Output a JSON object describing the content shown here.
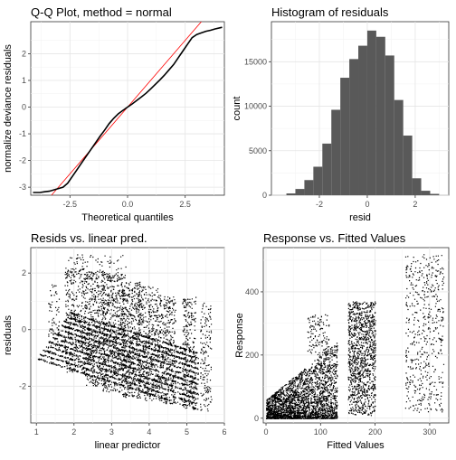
{
  "chart_data": [
    {
      "type": "scatter",
      "title": "Q-Q Plot, method = normal",
      "xlabel": "Theoretical quantiles",
      "ylabel": "normalize deviance residuals",
      "xlim": [
        -4.2,
        4.2
      ],
      "ylim": [
        -3.3,
        3.2
      ],
      "xticks": [
        -2.5,
        0.0,
        2.5
      ],
      "xtick_labels": [
        "-2.5",
        "0.0",
        "2.5"
      ],
      "yticks": [
        -3,
        -2,
        -1,
        0,
        1,
        2
      ],
      "ytick_labels": [
        "-3",
        "-2",
        "-1",
        "0",
        "1",
        "2"
      ],
      "grid": true,
      "reference_line": {
        "slope": 1,
        "intercept": 0,
        "color": "#ff0000"
      },
      "points": [
        [
          -4.1,
          -3.2
        ],
        [
          -3.8,
          -3.2
        ],
        [
          -3.6,
          -3.17
        ],
        [
          -3.4,
          -3.15
        ],
        [
          -3.2,
          -3.1
        ],
        [
          -3.0,
          -3.05
        ],
        [
          -2.8,
          -3.0
        ],
        [
          -2.6,
          -2.85
        ],
        [
          -2.4,
          -2.6
        ],
        [
          -2.2,
          -2.35
        ],
        [
          -2.0,
          -2.1
        ],
        [
          -1.8,
          -1.85
        ],
        [
          -1.6,
          -1.6
        ],
        [
          -1.4,
          -1.35
        ],
        [
          -1.2,
          -1.1
        ],
        [
          -1.0,
          -0.87
        ],
        [
          -0.8,
          -0.62
        ],
        [
          -0.6,
          -0.42
        ],
        [
          -0.4,
          -0.25
        ],
        [
          -0.2,
          -0.12
        ],
        [
          0.0,
          0.0
        ],
        [
          0.2,
          0.12
        ],
        [
          0.4,
          0.25
        ],
        [
          0.6,
          0.38
        ],
        [
          0.8,
          0.52
        ],
        [
          1.0,
          0.68
        ],
        [
          1.2,
          0.85
        ],
        [
          1.4,
          1.02
        ],
        [
          1.6,
          1.2
        ],
        [
          1.8,
          1.4
        ],
        [
          2.0,
          1.6
        ],
        [
          2.2,
          1.85
        ],
        [
          2.4,
          2.1
        ],
        [
          2.6,
          2.35
        ],
        [
          2.8,
          2.6
        ],
        [
          3.0,
          2.72
        ],
        [
          3.2,
          2.78
        ],
        [
          3.4,
          2.84
        ],
        [
          3.6,
          2.88
        ],
        [
          3.8,
          2.93
        ],
        [
          4.0,
          2.97
        ],
        [
          4.1,
          2.99
        ]
      ]
    },
    {
      "type": "bar",
      "title": "Histogram of residuals",
      "xlabel": "resid",
      "ylabel": "count",
      "xlim": [
        -4.0,
        3.4
      ],
      "ylim": [
        0,
        19500
      ],
      "xticks": [
        -2,
        0,
        2
      ],
      "xtick_labels": [
        "-2",
        "0",
        "2"
      ],
      "yticks": [
        0,
        5000,
        10000,
        15000
      ],
      "ytick_labels": [
        "0",
        "5000",
        "10000",
        "15000"
      ],
      "grid": true,
      "bar_color": "#595959",
      "bin_width": 0.375,
      "bin_starts": [
        -3.375,
        -3.0,
        -2.625,
        -2.25,
        -1.875,
        -1.5,
        -1.125,
        -0.75,
        -0.375,
        0.0,
        0.375,
        0.75,
        1.125,
        1.5,
        1.875,
        2.25,
        2.625
      ],
      "counts": [
        200,
        700,
        1700,
        3200,
        5800,
        9600,
        13200,
        15300,
        16800,
        18500,
        17800,
        15700,
        10700,
        6700,
        1900,
        500,
        150
      ]
    },
    {
      "type": "scatter",
      "title": "Resids vs. linear pred.",
      "xlabel": "linear predictor",
      "ylabel": "residuals",
      "xlim": [
        0.85,
        6.0
      ],
      "ylim": [
        -3.3,
        2.9
      ],
      "xticks": [
        1,
        2,
        3,
        4,
        5,
        6
      ],
      "xtick_labels": [
        "1",
        "2",
        "3",
        "4",
        "5",
        "6"
      ],
      "yticks": [
        -2,
        0,
        2
      ],
      "ytick_labels": [
        "-2",
        "0",
        "2"
      ],
      "grid": true,
      "point_color": "#000000",
      "note": "dense diagonal bands between linear predictor 1 and 6"
    },
    {
      "type": "scatter",
      "title": "Response vs. Fitted Values",
      "xlabel": "Fitted Values",
      "ylabel": "Response",
      "xlim": [
        -5,
        335
      ],
      "ylim": [
        -15,
        540
      ],
      "xticks": [
        0,
        100,
        200,
        300
      ],
      "xtick_labels": [
        "0",
        "100",
        "200",
        "300"
      ],
      "yticks": [
        0,
        200,
        400
      ],
      "ytick_labels": [
        "0",
        "200",
        "400"
      ],
      "grid": true,
      "point_color": "#000000",
      "note": "clusters at fitted 0–130, 150–200 and 255–325"
    }
  ]
}
